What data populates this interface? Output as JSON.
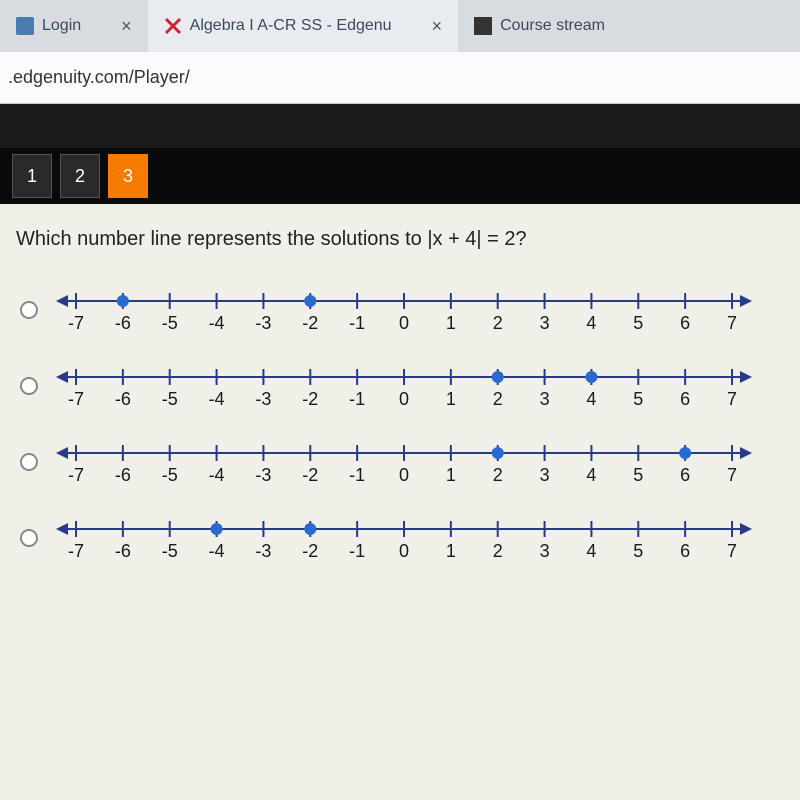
{
  "tabs": [
    {
      "label": "Login",
      "has_close": true
    },
    {
      "label": "Algebra I A-CR SS - Edgenu",
      "has_close": true,
      "active": true
    },
    {
      "label": "Course stream",
      "has_close": false
    }
  ],
  "url": ".edgenuity.com/Player/",
  "question_numbers": [
    "1",
    "2",
    "3"
  ],
  "active_question": 2,
  "question_text": "Which number line represents the solutions to |x + 4| = 2?",
  "numberline": {
    "min": -7,
    "max": 7,
    "labels": [
      "-7",
      "-6",
      "-5",
      "-4",
      "-3",
      "-2",
      "-1",
      "0",
      "1",
      "2",
      "3",
      "4",
      "5",
      "6",
      "7"
    ],
    "line_color": "#2a3a8a",
    "dot_color": "#2a6ad0",
    "text_color": "#1a1a1a",
    "tick_height": 8,
    "line_width": 2,
    "dot_radius": 6,
    "font_size": 18
  },
  "options": [
    {
      "points": [
        -6,
        -2
      ]
    },
    {
      "points": [
        2,
        4
      ]
    },
    {
      "points": [
        2,
        6
      ]
    },
    {
      "points": [
        -4,
        -2
      ]
    }
  ]
}
